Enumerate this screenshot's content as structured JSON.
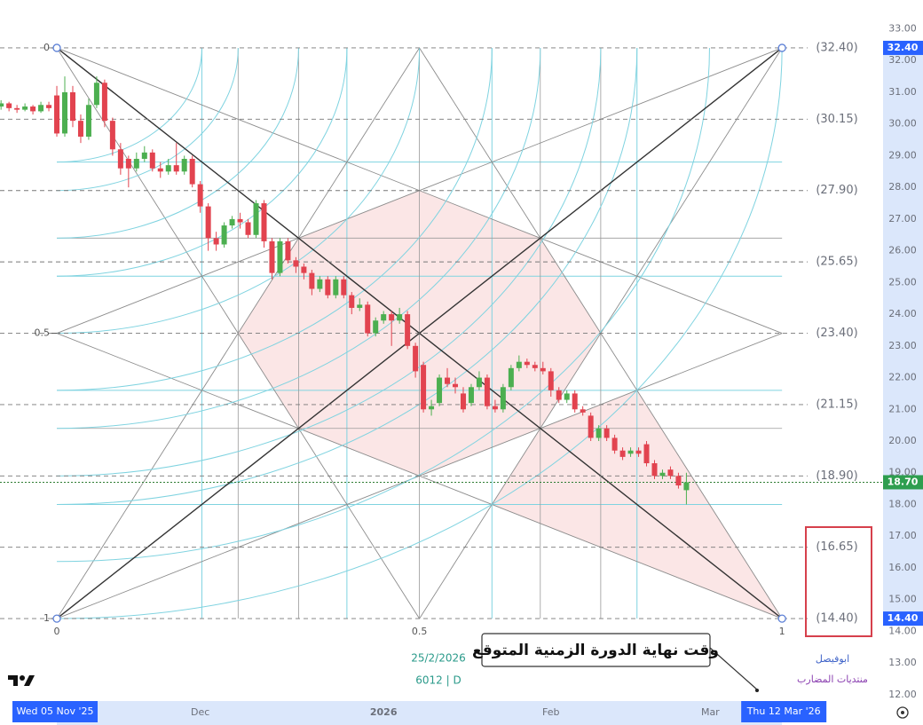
{
  "chart_data": {
    "type": "candlestick",
    "up_color": "#4caf50",
    "down_color": "#e2434f",
    "x": [
      -7,
      -6,
      -5,
      -4,
      -3,
      -2,
      -1,
      0,
      1,
      2,
      3,
      4,
      5,
      6,
      7,
      8,
      9,
      10,
      11,
      12,
      13,
      14,
      15,
      16,
      17,
      18,
      19,
      20,
      21,
      22,
      23,
      24,
      25,
      26,
      27,
      28,
      29,
      30,
      31,
      32,
      33,
      34,
      35,
      36,
      37,
      38,
      39,
      40,
      41,
      42,
      43,
      44,
      45,
      46,
      47,
      48,
      49,
      50,
      51,
      52,
      53,
      54,
      55,
      56,
      57,
      58,
      59,
      60,
      61,
      62,
      63,
      64,
      65,
      66,
      67,
      68,
      69,
      70,
      71,
      72,
      73,
      74,
      75,
      76,
      77,
      78,
      79
    ],
    "open": [
      30.55,
      30.65,
      30.5,
      30.45,
      30.55,
      30.4,
      30.6,
      30.9,
      29.7,
      31.0,
      30.1,
      29.6,
      30.6,
      31.3,
      30.1,
      29.2,
      28.9,
      28.6,
      28.9,
      29.1,
      28.6,
      28.5,
      28.7,
      28.5,
      28.9,
      28.1,
      27.4,
      26.4,
      26.2,
      26.8,
      27.0,
      26.9,
      26.5,
      27.5,
      26.3,
      25.3,
      26.3,
      25.7,
      25.5,
      25.3,
      24.8,
      25.1,
      24.6,
      25.1,
      24.6,
      24.2,
      24.3,
      23.4,
      23.8,
      24.0,
      23.8,
      24.0,
      23.0,
      22.4,
      21.0,
      21.2,
      22.0,
      21.8,
      21.5,
      21.2,
      21.7,
      22.0,
      21.1,
      21.0,
      21.7,
      22.3,
      22.5,
      22.4,
      22.3,
      22.2,
      21.6,
      21.3,
      21.5,
      21.0,
      20.8,
      20.1,
      20.4,
      20.1,
      19.7,
      19.6,
      19.7,
      19.9,
      19.3,
      18.9,
      19.1,
      18.9,
      18.45
    ],
    "high": [
      30.75,
      30.7,
      30.6,
      30.65,
      30.6,
      30.7,
      30.7,
      31.2,
      31.5,
      31.2,
      30.3,
      30.8,
      31.5,
      31.4,
      30.2,
      29.4,
      29.0,
      29.1,
      29.3,
      29.2,
      28.8,
      28.9,
      29.4,
      29.0,
      29.0,
      28.2,
      27.5,
      26.6,
      26.9,
      27.1,
      27.2,
      27.0,
      27.6,
      27.6,
      26.4,
      26.4,
      26.4,
      25.8,
      25.6,
      25.4,
      25.2,
      25.2,
      25.2,
      25.2,
      24.7,
      24.5,
      24.4,
      23.9,
      24.1,
      24.1,
      24.2,
      24.1,
      23.1,
      22.5,
      21.3,
      22.1,
      22.3,
      22.0,
      21.7,
      21.8,
      22.2,
      22.1,
      21.3,
      21.8,
      22.4,
      22.7,
      22.6,
      22.5,
      22.5,
      22.3,
      21.7,
      21.6,
      21.6,
      21.1,
      20.9,
      20.5,
      20.5,
      20.2,
      19.8,
      19.8,
      19.8,
      20.0,
      19.4,
      19.1,
      19.2,
      19.0,
      19.0
    ],
    "low": [
      30.45,
      30.4,
      30.35,
      30.4,
      30.3,
      30.35,
      30.4,
      29.6,
      29.6,
      29.9,
      29.4,
      29.5,
      30.5,
      29.9,
      29.0,
      28.4,
      28.0,
      28.5,
      28.8,
      28.5,
      28.3,
      28.4,
      28.4,
      28.4,
      28.0,
      27.2,
      26.0,
      26.0,
      26.1,
      26.7,
      26.7,
      26.4,
      26.4,
      26.1,
      25.1,
      25.2,
      25.6,
      25.3,
      25.1,
      24.6,
      24.7,
      24.5,
      24.5,
      24.5,
      24.0,
      24.1,
      23.3,
      23.3,
      23.7,
      23.0,
      23.7,
      22.9,
      22.0,
      20.9,
      20.8,
      21.1,
      21.7,
      21.5,
      20.9,
      21.1,
      21.6,
      21.0,
      20.9,
      20.9,
      21.6,
      22.2,
      22.3,
      22.2,
      22.1,
      21.4,
      21.2,
      21.2,
      20.9,
      20.8,
      20.0,
      20.0,
      20.0,
      19.6,
      19.4,
      19.5,
      19.5,
      19.2,
      18.8,
      18.8,
      18.8,
      18.5,
      18.0
    ],
    "close": [
      30.65,
      30.5,
      30.45,
      30.55,
      30.4,
      30.6,
      30.5,
      29.7,
      31.0,
      30.1,
      29.6,
      30.6,
      31.3,
      30.1,
      29.2,
      28.6,
      28.6,
      28.9,
      29.1,
      28.6,
      28.5,
      28.7,
      28.5,
      28.9,
      28.1,
      27.4,
      26.4,
      26.2,
      26.8,
      27.0,
      26.9,
      26.5,
      27.5,
      26.3,
      25.3,
      26.3,
      25.7,
      25.5,
      25.3,
      24.8,
      25.1,
      24.6,
      25.1,
      24.6,
      24.2,
      24.3,
      23.4,
      23.8,
      24.0,
      23.8,
      24.0,
      23.0,
      22.2,
      21.0,
      21.1,
      22.0,
      21.8,
      21.7,
      21.0,
      21.7,
      22.0,
      21.1,
      21.0,
      21.7,
      22.3,
      22.5,
      22.4,
      22.3,
      22.2,
      21.6,
      21.3,
      21.5,
      21.0,
      20.9,
      20.1,
      20.4,
      20.1,
      19.7,
      19.5,
      19.7,
      19.6,
      19.3,
      18.9,
      19.0,
      18.9,
      18.6,
      18.7
    ],
    "xlim": [
      -7.13,
      103.12
    ],
    "ylim": [
      11.8,
      33.91
    ],
    "yticks": [
      {
        "value": 12,
        "label": "12.00"
      },
      {
        "value": 13,
        "label": "13.00"
      },
      {
        "value": 14,
        "label": "14.00"
      },
      {
        "value": 15,
        "label": "15.00"
      },
      {
        "value": 16,
        "label": "16.00"
      },
      {
        "value": 17,
        "label": "17.00"
      },
      {
        "value": 18,
        "label": "18.00"
      },
      {
        "value": 19,
        "label": "19.00"
      },
      {
        "value": 20,
        "label": "20.00"
      },
      {
        "value": 21,
        "label": "21.00"
      },
      {
        "value": 22,
        "label": "22.00"
      },
      {
        "value": 23,
        "label": "23.00"
      },
      {
        "value": 24,
        "label": "24.00"
      },
      {
        "value": 25,
        "label": "25.00"
      },
      {
        "value": 26,
        "label": "26.00"
      },
      {
        "value": 27,
        "label": "27.00"
      },
      {
        "value": 28,
        "label": "28.00"
      },
      {
        "value": 29,
        "label": "29.00"
      },
      {
        "value": 30,
        "label": "30.00"
      },
      {
        "value": 31,
        "label": "31.00"
      },
      {
        "value": 32,
        "label": "32.00"
      },
      {
        "value": 33,
        "label": "33.00"
      }
    ],
    "xticks": [
      {
        "value": 18,
        "label": "Dec"
      },
      {
        "value": 41,
        "label": "2026"
      },
      {
        "value": 62,
        "label": "Feb"
      },
      {
        "value": 82,
        "label": "Mar"
      }
    ],
    "x_range_labels": [
      {
        "value": 0,
        "label": "Wed 05 Nov '25"
      },
      {
        "value": 91,
        "label": "Thu 12 Mar '26"
      }
    ],
    "price_range_labels": [
      {
        "value": 32.4,
        "label": "32.40"
      },
      {
        "value": 14.4,
        "label": "14.40"
      }
    ],
    "last_price": {
      "value": 18.7,
      "label": "18.70"
    },
    "gann": {
      "x_start": 0,
      "x_end": 91,
      "price_top": 32.4,
      "price_bottom": 14.4,
      "levels": [
        {
          "value": 32.4,
          "label": "(32.40)"
        },
        {
          "value": 30.15,
          "label": "(30.15)"
        },
        {
          "value": 27.9,
          "label": "(27.90)"
        },
        {
          "value": 25.65,
          "label": "(25.65)"
        },
        {
          "value": 23.4,
          "label": "(23.40)"
        },
        {
          "value": 21.15,
          "label": "(21.15)"
        },
        {
          "value": 18.9,
          "label": "(18.90)"
        },
        {
          "value": 16.65,
          "label": "(16.65)"
        },
        {
          "value": 14.4,
          "label": "(14.40)"
        }
      ],
      "price_ratios": [
        0,
        0.5,
        1
      ],
      "time_ratios": [
        0,
        0.5,
        1
      ]
    },
    "annotation": "وقت نهاية الدورة الزمنية المتوقع",
    "date_label": "25/2/2026",
    "symbol": "6012 | D",
    "watermarks": [
      "ابوفيصل",
      "منتديات المضارب"
    ]
  }
}
